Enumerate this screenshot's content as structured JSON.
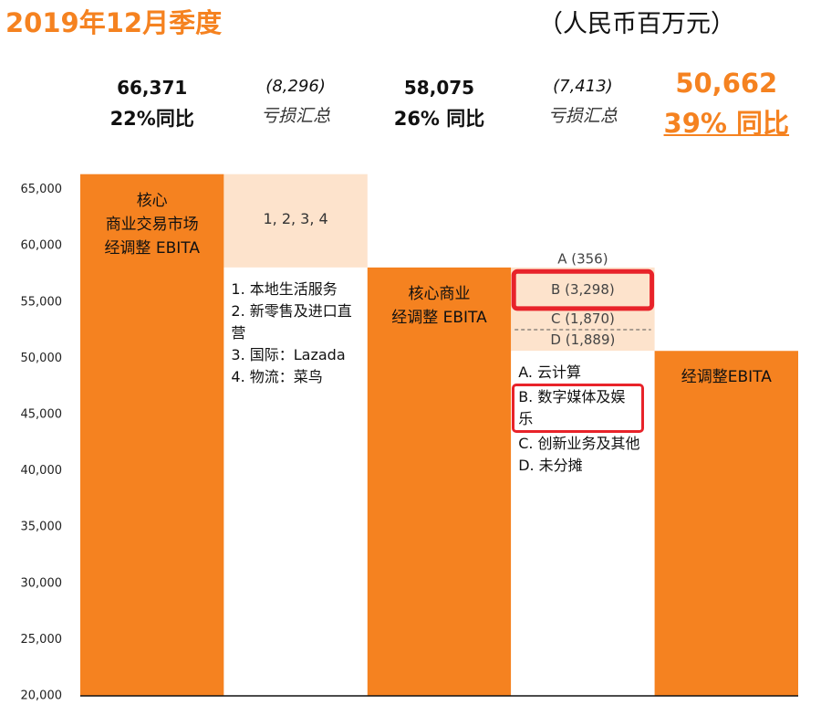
{
  "chart_data": {
    "type": "waterfall",
    "title": "2019年12月季度",
    "unit": "（人民币百万元）",
    "ylim": [
      20000,
      70000
    ],
    "yticks": [
      {
        "value": 20000,
        "label": "20,000"
      },
      {
        "value": 25000,
        "label": "25,000"
      },
      {
        "value": 30000,
        "label": "30,000"
      },
      {
        "value": 35000,
        "label": "35,000"
      },
      {
        "value": 40000,
        "label": "40,000"
      },
      {
        "value": 45000,
        "label": "45,000"
      },
      {
        "value": 50000,
        "label": "50,000"
      },
      {
        "value": 55000,
        "label": "55,000"
      },
      {
        "value": 60000,
        "label": "60,000"
      },
      {
        "value": 65000,
        "label": "65,000"
      }
    ],
    "color": "#f58220",
    "loss_color": "#fde3cc",
    "highlight_color": "#e8232a",
    "steps": [
      {
        "kind": "total",
        "value": 66371,
        "value_label": "66,371",
        "growth": "22%同比",
        "inner_label": [
          "核心",
          "商业交易市场",
          "经调整 EBITA"
        ]
      },
      {
        "kind": "loss",
        "value": -8296,
        "value_label": "(8,296)",
        "note": "亏损汇总",
        "inner_label": [
          "1, 2, 3, 4"
        ],
        "items": [
          "1. 本地生活服务",
          "2. 新零售及进口直营",
          "3. 国际：Lazada",
          "4. 物流：菜鸟"
        ]
      },
      {
        "kind": "total",
        "value": 58075,
        "value_label": "58,075",
        "growth": "26% 同比",
        "inner_label": [
          "核心商业",
          "经调整 EBITA"
        ]
      },
      {
        "kind": "loss",
        "value": -7413,
        "value_label": "(7,413)",
        "note": "亏损汇总",
        "segments": {
          "values": [
            -356,
            -3298,
            -1870,
            -1889
          ],
          "value_labels": [
            "A (356)",
            "B (3,298)",
            "C (1,870)",
            "D (1,889)"
          ]
        },
        "highlight": 1,
        "items": [
          "A. 云计算",
          "B. 数字媒体及娱乐",
          "C. 创新业务及其他",
          "D. 未分摊"
        ]
      },
      {
        "kind": "total",
        "value": 50662,
        "value_label": "50,662",
        "growth": "39% 同比",
        "inner_label": [
          "经调整EBITA"
        ],
        "emphasis": true
      }
    ]
  }
}
